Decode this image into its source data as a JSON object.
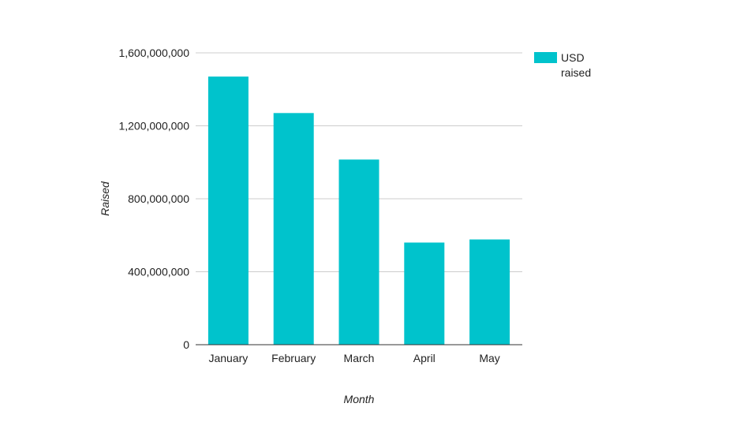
{
  "chart_data": {
    "type": "bar",
    "title": "",
    "xlabel": "Month",
    "ylabel": "Raised",
    "categories": [
      "January",
      "February",
      "March",
      "April",
      "May"
    ],
    "series": [
      {
        "name": "USD raised",
        "values": [
          1470000000,
          1270000000,
          1015000000,
          560000000,
          577000000
        ],
        "color": "#00c3cc"
      }
    ],
    "ylim": [
      0,
      1600000000
    ],
    "yticks": [
      0,
      400000000,
      800000000,
      1200000000,
      1600000000
    ],
    "ytick_labels": [
      "0",
      "400,000,000",
      "800,000,000",
      "1,200,000,000",
      "1,600,000,000"
    ],
    "grid": true,
    "legend": {
      "position": "right",
      "lines": [
        "USD",
        "raised"
      ]
    }
  }
}
